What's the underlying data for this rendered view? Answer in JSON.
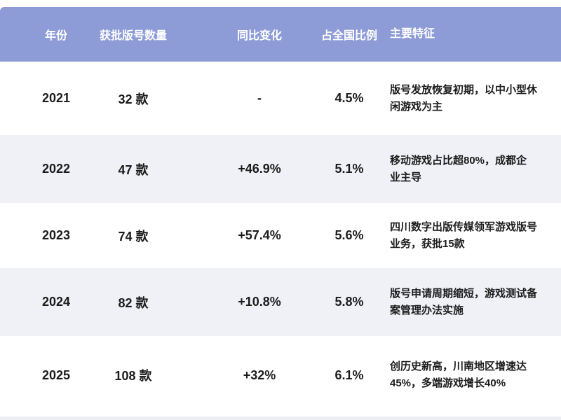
{
  "table": {
    "columns": {
      "year": "年份",
      "count": "获批版号数量",
      "change": "同比变化",
      "share": "占全国比例",
      "feature": "主要特征"
    },
    "rows": [
      {
        "year": "2021",
        "count": "32 款",
        "change": "-",
        "share": "4.5%",
        "feature": "版号发放恢复初期，以中小型休闲游戏为主"
      },
      {
        "year": "2022",
        "count": "47 款",
        "change": "+46.9%",
        "share": "5.1%",
        "feature": "移动游戏占比超80%，成都企业主导"
      },
      {
        "year": "2023",
        "count": "74 款",
        "change": "+57.4%",
        "share": "5.6%",
        "feature": "四川数字出版传媒领军游戏版号业务，获批15款"
      },
      {
        "year": "2024",
        "count": "82 款",
        "change": "+10.8%",
        "share": "5.8%",
        "feature": "版号申请周期缩短，游戏测试备案管理办法实施"
      },
      {
        "year": "2025",
        "count": "108 款",
        "change": "+32%",
        "share": "6.1%",
        "feature": "创历史新高，川南地区增速达45%，多端游戏增长40%"
      }
    ],
    "colors": {
      "header_bg": "#8d9bd6",
      "header_text": "#ffffff",
      "row_bg": "#ffffff",
      "row_alt_bg": "#eff1f7",
      "body_text": "#1c1c1c"
    }
  },
  "chart_data": {
    "type": "table",
    "title": "",
    "columns": [
      "年份",
      "获批版号数量",
      "同比变化",
      "占全国比例",
      "主要特征"
    ],
    "rows": [
      [
        "2021",
        "32 款",
        "-",
        "4.5%",
        "版号发放恢复初期，以中小型休闲游戏为主"
      ],
      [
        "2022",
        "47 款",
        "+46.9%",
        "5.1%",
        "移动游戏占比超80%，成都企业主导"
      ],
      [
        "2023",
        "74 款",
        "+57.4%",
        "5.6%",
        "四川数字出版传媒领军游戏版号业务，获批15款"
      ],
      [
        "2024",
        "82 款",
        "+10.8%",
        "5.8%",
        "版号申请周期缩短，游戏测试备案管理办法实施"
      ],
      [
        "2025",
        "108 款",
        "+32%",
        "6.1%",
        "创历史新高，川南地区增速达45%，多端游戏增长40%"
      ]
    ],
    "series": [
      {
        "name": "获批版号数量(款)",
        "x": [
          2021,
          2022,
          2023,
          2024,
          2025
        ],
        "values": [
          32,
          47,
          74,
          82,
          108
        ]
      },
      {
        "name": "同比变化(%)",
        "x": [
          2021,
          2022,
          2023,
          2024,
          2025
        ],
        "values": [
          null,
          46.9,
          57.4,
          10.8,
          32
        ]
      },
      {
        "name": "占全国比例(%)",
        "x": [
          2021,
          2022,
          2023,
          2024,
          2025
        ],
        "values": [
          4.5,
          5.1,
          5.6,
          5.8,
          6.1
        ]
      }
    ]
  }
}
